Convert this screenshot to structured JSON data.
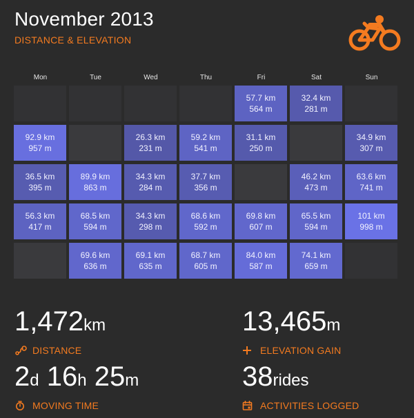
{
  "header": {
    "title": "November 2013",
    "subtitle": "DISTANCE & ELEVATION",
    "logo_icon": "cyclist-icon"
  },
  "colors": {
    "accent": "#f47b20",
    "background": "#2b2b2b",
    "empty_cell": "#3a3a3d",
    "low_cell": "#4c4f92",
    "high_cell": "#6a72e6"
  },
  "days": [
    "Mon",
    "Tue",
    "Wed",
    "Thu",
    "Fri",
    "Sat",
    "Sun"
  ],
  "calendar": {
    "weeks": [
      [
        null,
        null,
        null,
        null,
        {
          "km": "57.7 km",
          "m": "564 m"
        },
        {
          "km": "32.4 km",
          "m": "281 m"
        },
        null
      ],
      [
        {
          "km": "92.9 km",
          "m": "957 m"
        },
        {
          "km": "",
          "m": ""
        },
        {
          "km": "26.3 km",
          "m": "231 m"
        },
        {
          "km": "59.2 km",
          "m": "541 m"
        },
        {
          "km": "31.1 km",
          "m": "250 m"
        },
        {
          "km": "",
          "m": ""
        },
        {
          "km": "34.9 km",
          "m": "307 m"
        }
      ],
      [
        {
          "km": "36.5 km",
          "m": "395 m"
        },
        {
          "km": "89.9 km",
          "m": "863 m"
        },
        {
          "km": "34.3 km",
          "m": "284 m"
        },
        {
          "km": "37.7 km",
          "m": "356 m"
        },
        {
          "km": "",
          "m": ""
        },
        {
          "km": "46.2 km",
          "m": "473 m"
        },
        {
          "km": "63.6 km",
          "m": "741 m"
        }
      ],
      [
        {
          "km": "56.3 km",
          "m": "417 m"
        },
        {
          "km": "68.5 km",
          "m": "594 m"
        },
        {
          "km": "34.3 km",
          "m": "298 m"
        },
        {
          "km": "68.6 km",
          "m": "592 m"
        },
        {
          "km": "69.8 km",
          "m": "607 m"
        },
        {
          "km": "65.5 km",
          "m": "594 m"
        },
        {
          "km": "101 km",
          "m": "998 m"
        }
      ],
      [
        {
          "km": "",
          "m": ""
        },
        {
          "km": "69.6 km",
          "m": "636 m"
        },
        {
          "km": "69.1 km",
          "m": "635 m"
        },
        {
          "km": "68.7 km",
          "m": "605 m"
        },
        {
          "km": "84.0 km",
          "m": "587 m"
        },
        {
          "km": "74.1 km",
          "m": "659 m"
        },
        null
      ]
    ],
    "intensity": [
      [
        null,
        null,
        null,
        null,
        0.57,
        0.32,
        null
      ],
      [
        0.92,
        0,
        0.26,
        0.59,
        0.31,
        0,
        0.35
      ],
      [
        0.36,
        0.89,
        0.34,
        0.37,
        0,
        0.46,
        0.63
      ],
      [
        0.56,
        0.68,
        0.34,
        0.68,
        0.69,
        0.65,
        1.0
      ],
      [
        0,
        0.69,
        0.68,
        0.68,
        0.83,
        0.73,
        null
      ]
    ]
  },
  "stats": {
    "distance": {
      "value": "1,472",
      "unit": "km",
      "label": "DISTANCE",
      "icon": "route-pin-icon"
    },
    "elevation": {
      "value": "13,465",
      "unit": "m",
      "label": "ELEVATION GAIN",
      "icon": "plus-icon"
    },
    "moving_time": {
      "d": "2",
      "d_unit": "d",
      "h": "16",
      "h_unit": "h",
      "m": "25",
      "m_unit": "m",
      "label": "MOVING TIME",
      "icon": "stopwatch-icon"
    },
    "activities": {
      "value": "38",
      "unit": "rides",
      "label": "ACTIVITIES LOGGED",
      "icon": "calendar-icon"
    }
  }
}
